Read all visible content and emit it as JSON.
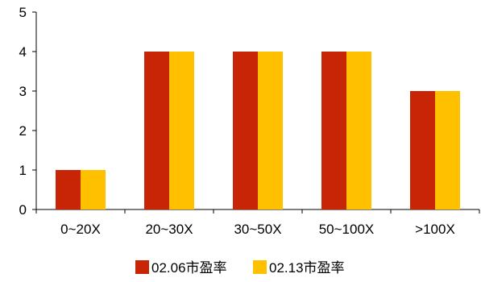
{
  "chart_data": {
    "type": "bar",
    "categories": [
      "0~20X",
      "20~30X",
      "30~50X",
      "50~100X",
      ">100X"
    ],
    "series": [
      {
        "name": "02.06市盈率",
        "values": [
          1,
          4,
          4,
          4,
          3
        ],
        "color": "#C82506"
      },
      {
        "name": "02.13市盈率",
        "values": [
          1,
          4,
          4,
          4,
          3
        ],
        "color": "#FFC000"
      }
    ],
    "ylim": [
      0,
      5
    ],
    "yticks": [
      "0",
      "1",
      "2",
      "3",
      "4",
      "5"
    ],
    "grid": false,
    "legend": "bottom-center"
  }
}
